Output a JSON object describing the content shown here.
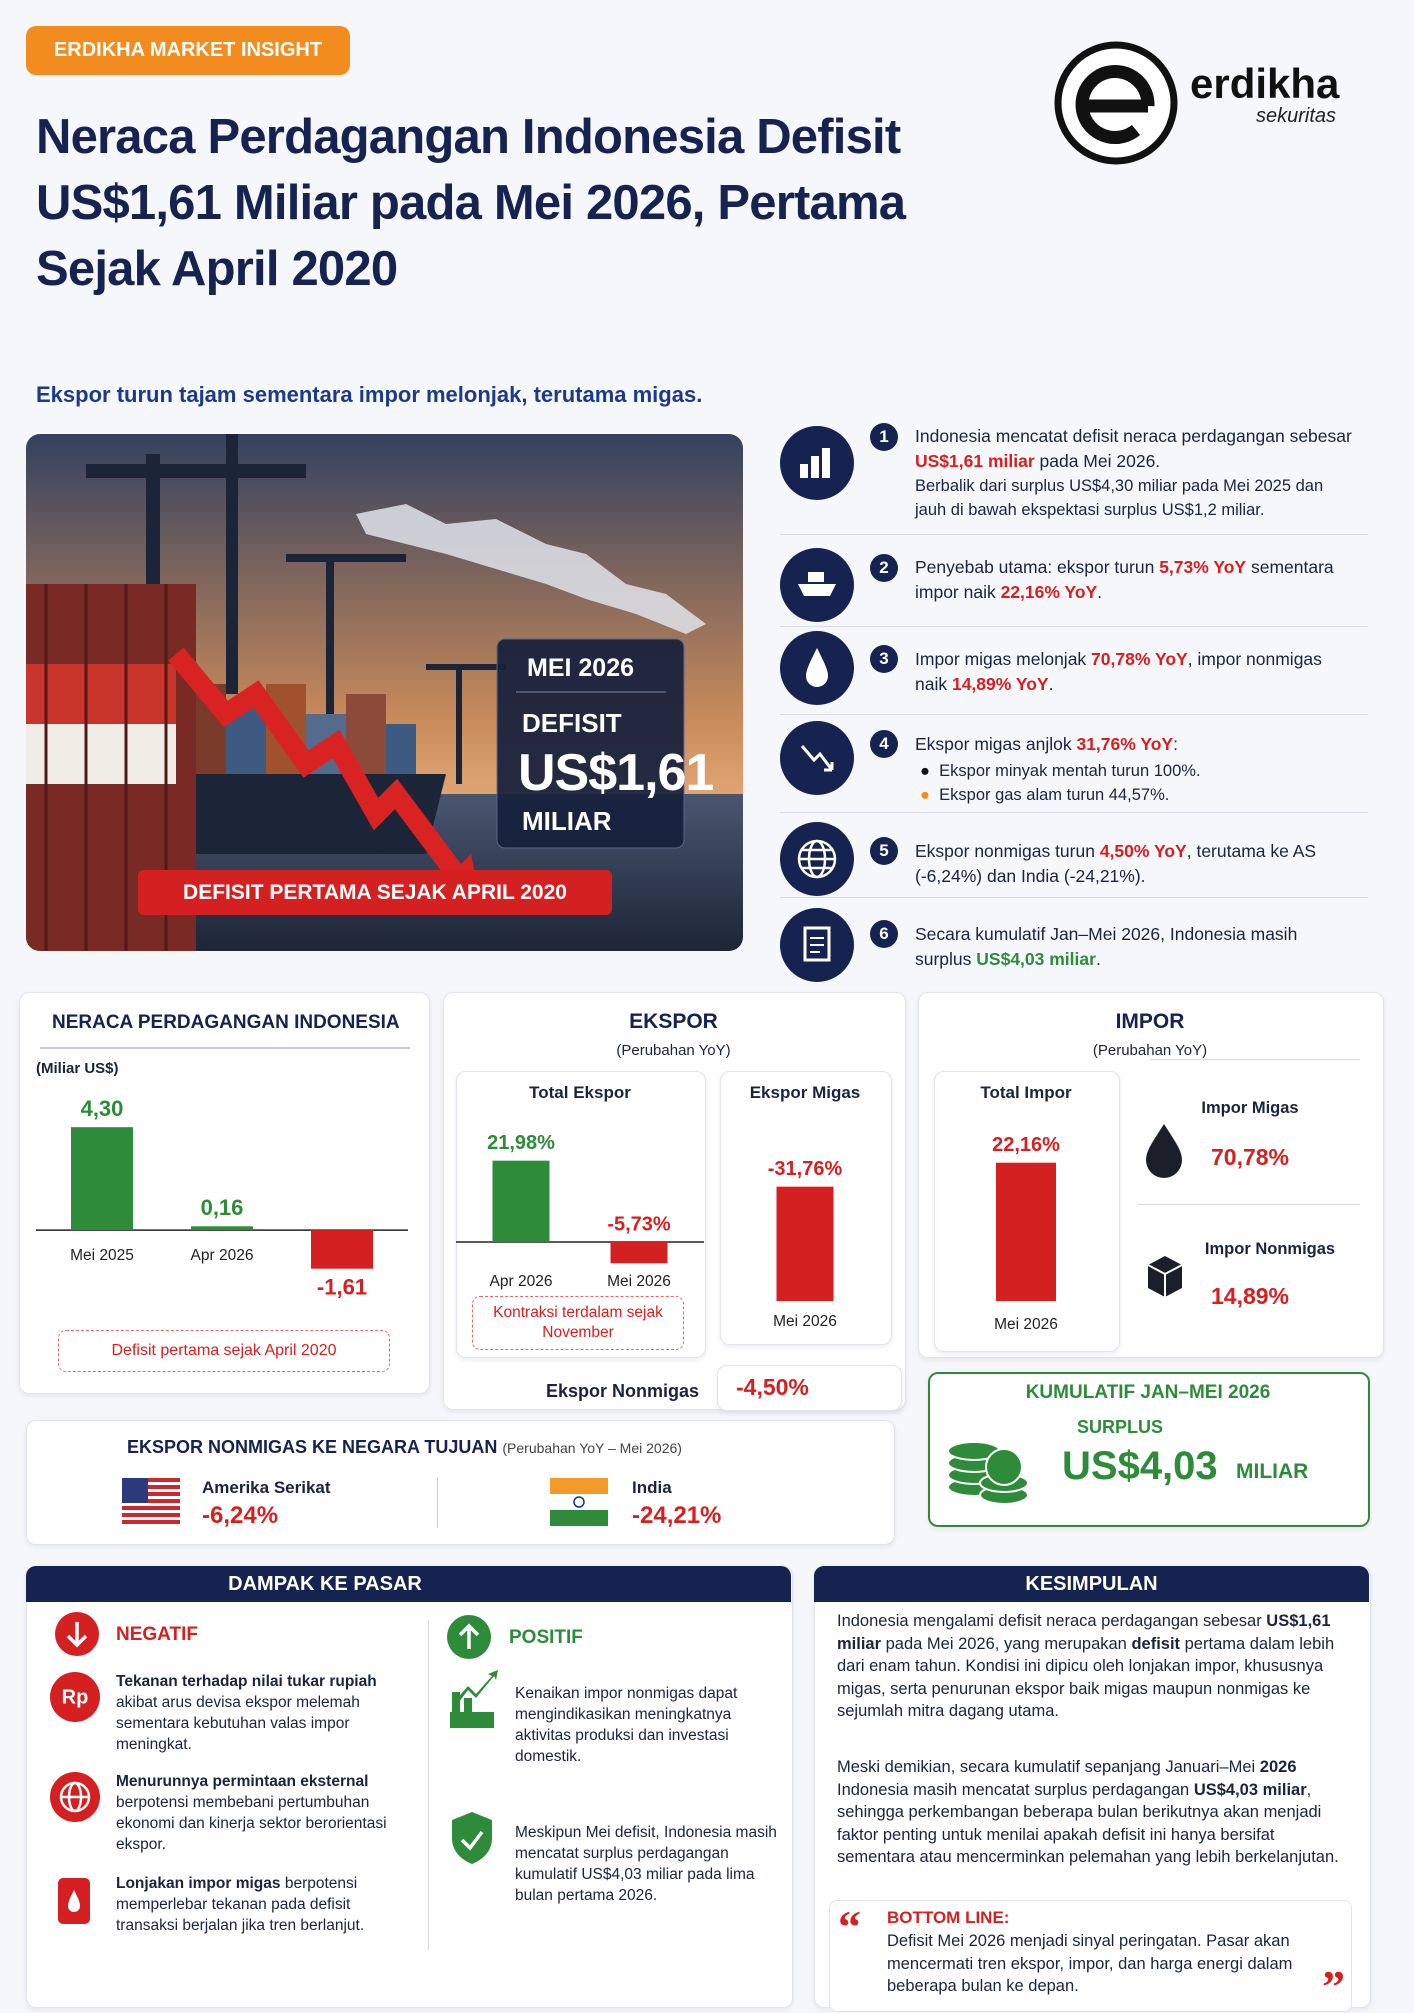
{
  "badge": "ERDIKHA MARKET INSIGHT",
  "logo": {
    "name": "erdikha",
    "sub": "sekuritas"
  },
  "title": "Neraca Perdagangan Indonesia Defisit US$1,61 Miliar pada Mei 2026, Pertama Sejak April 2020",
  "subtitle": "Ekspor turun tajam sementara impor melonjak, terutama migas.",
  "hero": {
    "period": "MEI 2026",
    "label": "DEFISIT",
    "value": "US$1,61",
    "unit": "MILIAR",
    "banner": "DEFISIT PERTAMA SEJAK APRIL 2020"
  },
  "points": [
    {
      "number": "1",
      "text": [
        "Indonesia mencatat defisit neraca perdagangan sebesar ",
        {
          "em": "US$1,61 miliar"
        },
        " pada Mei 2026."
      ],
      "detail": "Berbalik dari surplus US$4,30 miliar pada Mei 2025 dan jauh di bawah ekspektasi surplus US$1,2 miliar."
    },
    {
      "number": "2",
      "text": [
        "Penyebab utama: ekspor turun ",
        {
          "em": "5,73% YoY"
        },
        " sementara impor naik ",
        {
          "em": "22,16% YoY"
        },
        "."
      ]
    },
    {
      "number": "3",
      "text": [
        "Impor migas melonjak ",
        {
          "em": "70,78% YoY"
        },
        ", impor nonmigas naik ",
        {
          "em": "14,89% YoY"
        },
        "."
      ]
    },
    {
      "number": "4",
      "text": [
        "Ekspor migas anjlok ",
        {
          "em": "31,76% YoY"
        },
        ":"
      ],
      "bullets": [
        "Ekspor minyak mentah turun 100%.",
        "Ekspor gas alam turun 44,57%."
      ]
    },
    {
      "number": "5",
      "text": [
        "Ekspor nonmigas turun ",
        {
          "em": "4,50% YoY"
        },
        ", terutama ke AS (-6,24%) dan India (-24,21%)."
      ]
    },
    {
      "number": "6",
      "text": [
        "Secara kumulatif Jan–Mei 2026, Indonesia masih surplus ",
        {
          "em": "US$4,03 miliar"
        },
        "."
      ]
    }
  ],
  "panels": {
    "ekspor": {
      "title": "EKSPOR",
      "subtitle": "(Perubahan YoY)"
    },
    "impor": {
      "title": "IMPOR",
      "subtitle": "(Perubahan YoY)"
    }
  },
  "chart_data": [
    {
      "type": "bar",
      "title": "NERACA PERDAGANGAN INDONESIA",
      "y_label": "(Miliar US$)",
      "categories": [
        "Mei 2025",
        "Apr 2026",
        null
      ],
      "values": [
        4.3,
        0.16,
        -1.61
      ],
      "value_labels": [
        "4,30",
        "0,16",
        "-1,61"
      ],
      "colors": [
        "#2e8b3a",
        "#2e8b3a",
        "#d42020"
      ],
      "ylim": [
        -2.5,
        4.6
      ],
      "note": "Defisit pertama sejak April 2020"
    },
    {
      "type": "bar",
      "title": "Total Ekspor",
      "categories": [
        "Apr 2026",
        "Mei 2026"
      ],
      "values": [
        21.98,
        -5.73
      ],
      "value_labels": [
        "21,98%",
        "-5,73%"
      ],
      "colors": [
        "#2e8b3a",
        "#d42020"
      ],
      "ylim": [
        -8,
        25
      ],
      "note": "Kontraksi terdalam sejak November"
    },
    {
      "type": "bar",
      "title": "Ekspor Migas",
      "categories": [
        "Mei 2026"
      ],
      "values": [
        -31.76
      ],
      "value_labels": [
        "-31,76%"
      ],
      "colors": [
        "#d42020"
      ],
      "ylim": [
        0,
        -35
      ]
    },
    {
      "type": "bar",
      "title": "Total Impor",
      "categories": [
        "Mei 2026"
      ],
      "values": [
        22.16
      ],
      "value_labels": [
        "22,16%"
      ],
      "colors": [
        "#d42020"
      ],
      "ylim": [
        0,
        25
      ]
    }
  ],
  "impor_items": [
    {
      "name": "Impor Migas",
      "value": "70,78%"
    },
    {
      "name": "Impor Nonmigas",
      "value": "14,89%"
    }
  ],
  "ekspor_nonmigas": {
    "label": "Ekspor Nonmigas",
    "value": "-4,50%"
  },
  "kumulatif": {
    "title": "KUMULATIF JAN–MEI 2026",
    "label": "SURPLUS",
    "value": "US$4,03",
    "unit": "MILIAR"
  },
  "destinations": {
    "title": "EKSPOR NONMIGAS KE NEGARA TUJUAN",
    "subtitle": "(Perubahan YoY – Mei 2026)",
    "items": [
      {
        "country": "Amerika Serikat",
        "value": "-6,24%"
      },
      {
        "country": "India",
        "value": "-24,21%"
      }
    ]
  },
  "impact": {
    "title": "DAMPAK KE PASAR",
    "negative": {
      "label": "NEGATIF",
      "items": [
        [
          {
            "em": "Tekanan terhadap nilai tukar rupiah"
          },
          " akibat arus devisa ekspor melemah sementara kebutuhan valas impor meningkat."
        ],
        [
          {
            "em": "Menurunnya permintaan eksternal"
          },
          " berpotensi membebani pertumbuhan ekonomi dan kinerja sektor berorientasi ekspor."
        ],
        [
          {
            "em": "Lonjakan impor migas"
          },
          " berpotensi memperlebar tekanan pada defisit transaksi berjalan jika tren berlanjut."
        ]
      ]
    },
    "positive": {
      "label": "POSITIF",
      "items": [
        [
          "Kenaikan impor nonmigas dapat mengindikasikan meningkatnya aktivitas produksi dan investasi domestik."
        ],
        [
          "Meskipun Mei defisit, Indonesia masih mencatat surplus perdagangan kumulatif US$4,03 miliar pada lima bulan pertama 2026."
        ]
      ]
    }
  },
  "conclusion": {
    "title": "KESIMPULAN",
    "paragraphs": [
      [
        "Indonesia mengalami defisit neraca perdagangan sebesar ",
        {
          "em": "US$1,61 miliar"
        },
        " pada Mei 2026, yang merupakan ",
        {
          "em": "defisit"
        },
        " pertama dalam lebih dari enam tahun. Kondisi ini dipicu oleh lonjakan impor, khususnya migas, serta penurunan ekspor baik migas maupun nonmigas ke sejumlah mitra dagang utama."
      ],
      [
        "Meski demikian, secara kumulatif sepanjang Januari–Mei ",
        {
          "em": "2026"
        },
        " Indonesia masih mencatat surplus perdagangan ",
        {
          "em": "US$4,03 miliar"
        },
        ", sehingga perkembangan beberapa bulan berikutnya akan menjadi faktor penting untuk menilai apakah defisit ini hanya bersifat sementara atau mencerminkan pelemahan yang lebih berkelanjutan."
      ]
    ],
    "bottom_line": {
      "label": "BOTTOM LINE:",
      "text": "Defisit Mei 2026 menjadi sinyal peringatan. Pasar akan mencermati tren ekspor, impor, dan harga energi dalam beberapa bulan ke depan."
    }
  }
}
